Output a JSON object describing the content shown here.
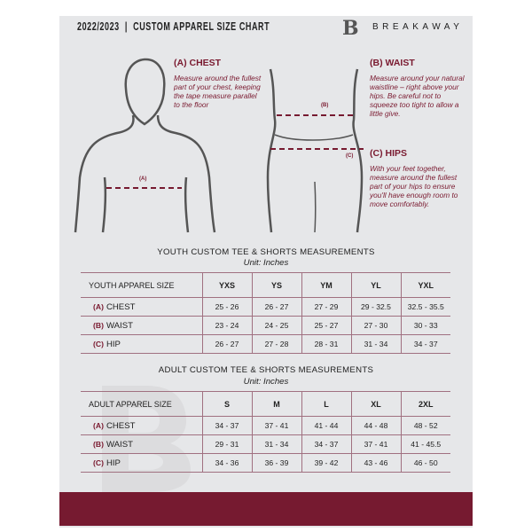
{
  "header": {
    "title": "2022/2023  |  CUSTOM APPAREL SIZE CHART",
    "logo_letter": "B",
    "brand": "BREAKAWAY"
  },
  "measures": {
    "chest": {
      "heading": "(A) CHEST",
      "text": "Measure around the fullest part of your chest, keeping the tape measure parallel to the floor",
      "marker": "(A)"
    },
    "waist": {
      "heading": "(B) WAIST",
      "text": "Measure around your natural waistline – right above your hips. Be careful not to squeeze too tight to allow a little give.",
      "marker": "(B)"
    },
    "hips": {
      "heading": "(C) HIPS",
      "text": "With your feet together, measure around the fullest part of your hips to ensure you'll have enough room to move comfortably.",
      "marker": "(C)"
    }
  },
  "youth": {
    "title": "YOUTH CUSTOM TEE & SHORTS MEASUREMENTS",
    "unit": "Unit: Inches",
    "header": [
      "YOUTH APPAREL SIZE",
      "YXS",
      "YS",
      "YM",
      "YL",
      "YXL"
    ],
    "rows": [
      {
        "code": "(A)",
        "name": "CHEST",
        "values": [
          "25 - 26",
          "26 - 27",
          "27 - 29",
          "29 - 32.5",
          "32.5 - 35.5"
        ]
      },
      {
        "code": "(B)",
        "name": "WAIST",
        "values": [
          "23 - 24",
          "24 - 25",
          "25 - 27",
          "27 - 30",
          "30 - 33"
        ]
      },
      {
        "code": "(C)",
        "name": "HIP",
        "values": [
          "26 - 27",
          "27 - 28",
          "28 - 31",
          "31 - 34",
          "34 - 37"
        ]
      }
    ]
  },
  "adult": {
    "title": "ADULT CUSTOM TEE & SHORTS MEASUREMENTS",
    "unit": "Unit: Inches",
    "header": [
      "ADULT APPAREL SIZE",
      "S",
      "M",
      "L",
      "XL",
      "2XL"
    ],
    "rows": [
      {
        "code": "(A)",
        "name": "CHEST",
        "values": [
          "34 - 37",
          "37 - 41",
          "41 - 44",
          "44 - 48",
          "48 - 52"
        ]
      },
      {
        "code": "(B)",
        "name": "WAIST",
        "values": [
          "29 - 31",
          "31 - 34",
          "34 - 37",
          "37 - 41",
          "41 - 45.5"
        ]
      },
      {
        "code": "(C)",
        "name": "HIP",
        "values": [
          "34 - 36",
          "36 - 39",
          "39 - 42",
          "43 - 46",
          "46 - 50"
        ]
      }
    ]
  },
  "colors": {
    "accent": "#761a30",
    "panel": "#e6e7e9"
  }
}
